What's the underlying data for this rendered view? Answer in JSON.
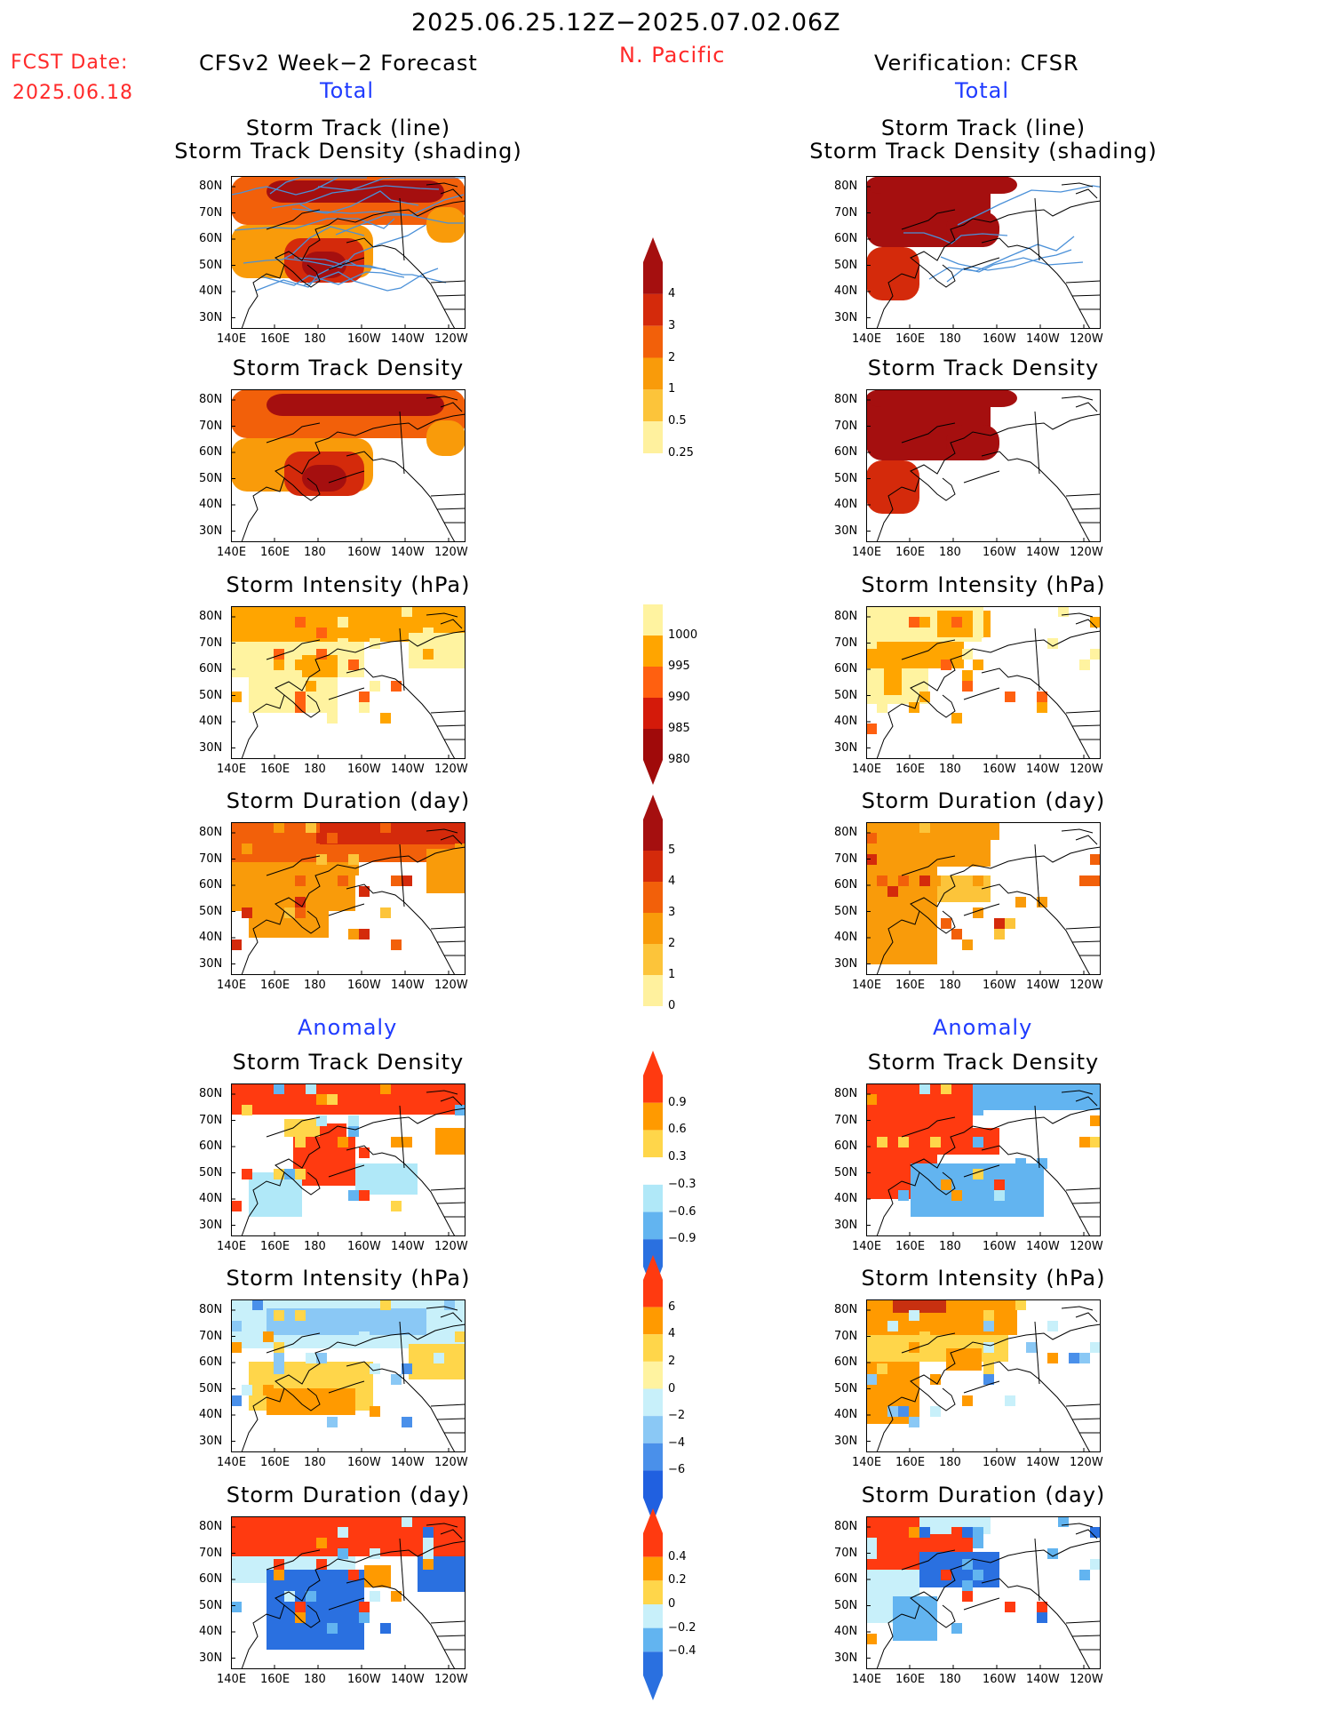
{
  "header": {
    "period": "2025.06.25.12Z−2025.07.02.06Z",
    "fcst_label": "FCST Date:",
    "fcst_date": "2025.06.18",
    "forecast_title": "CFSv2 Week−2 Forecast",
    "region": "N. Pacific",
    "verification_title": "Verification: CFSR",
    "total_left": "Total",
    "total_right": "Total",
    "anomaly_left": "Anomaly",
    "anomaly_right": "Anomaly"
  },
  "panel_titles": {
    "track_line": "Storm Track (line)",
    "track_shading": "Storm Track Density (shading)",
    "density": "Storm Track Density",
    "intensity": "Storm Intensity (hPa)",
    "duration": "Storm Duration (day)"
  },
  "axes": {
    "lat_labels": [
      "80N",
      "70N",
      "60N",
      "50N",
      "40N",
      "30N"
    ],
    "lon_labels": [
      "140E",
      "160E",
      "180",
      "160W",
      "140W",
      "120W"
    ]
  },
  "colorbars": {
    "density": {
      "labels": [
        "4",
        "3",
        "2",
        "1",
        "0.5",
        "0.25"
      ],
      "colors": [
        "#a50f0f",
        "#d42a0b",
        "#f2600a",
        "#f99b0a",
        "#fcc43a",
        "#fff19e"
      ]
    },
    "intensity": {
      "labels": [
        "1000",
        "995",
        "990",
        "985",
        "980"
      ],
      "colors": [
        "#fff3a0",
        "#ffa500",
        "#ff6010",
        "#d41a0a",
        "#a00a0a"
      ]
    },
    "duration": {
      "labels": [
        "5",
        "4",
        "3",
        "2",
        "1",
        "0"
      ],
      "colors": [
        "#a50f0f",
        "#d42a0b",
        "#f2600a",
        "#f99b0a",
        "#fcc43a",
        "#fff19e"
      ]
    },
    "anom_density": {
      "labels": [
        "0.9",
        "0.6",
        "0.3",
        "−0.3",
        "−0.6",
        "−0.9"
      ],
      "colors": [
        "#ff3a10",
        "#ff9a00",
        "#ffd64a",
        "#ffffff",
        "#b0e8f8",
        "#62b4f0",
        "#2a70e0"
      ]
    },
    "anom_intensity": {
      "labels": [
        "6",
        "4",
        "2",
        "0",
        "−2",
        "−4",
        "−6"
      ],
      "colors": [
        "#ff3a10",
        "#ff9a00",
        "#ffd64a",
        "#fff3a0",
        "#c8f0fa",
        "#8ac8f5",
        "#4a90ea",
        "#2060e0"
      ]
    },
    "anom_duration": {
      "labels": [
        "0.4",
        "0.2",
        "0",
        "−0.2",
        "−0.4"
      ],
      "colors": [
        "#ff3a10",
        "#ff9a00",
        "#ffd64a",
        "#c8f0fa",
        "#62b4f0",
        "#2a70e0"
      ]
    }
  }
}
